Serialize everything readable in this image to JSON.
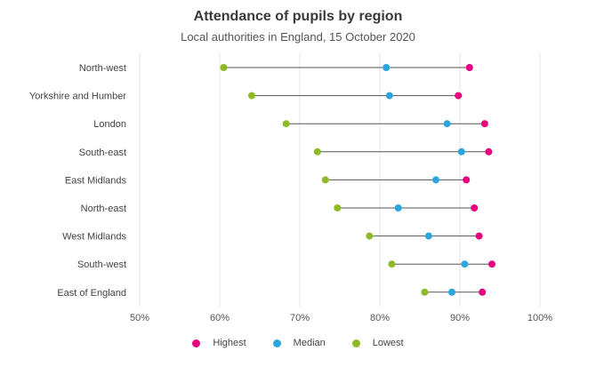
{
  "chart_data": {
    "type": "dot-range",
    "title": "Attendance of pupils by region",
    "subtitle": "Local authorities in England, 15 October 2020",
    "categories": [
      "North-west",
      "Yorkshire and Humber",
      "London",
      "South-east",
      "East Midlands",
      "North-east",
      "West Midlands",
      "South-west",
      "East of England"
    ],
    "series": [
      {
        "name": "Highest",
        "color": "#e6007e",
        "values": [
          91.2,
          89.8,
          93.1,
          93.6,
          90.8,
          91.8,
          92.4,
          94.0,
          92.8
        ]
      },
      {
        "name": "Median",
        "color": "#2aa6dc",
        "values": [
          80.8,
          81.2,
          88.4,
          90.2,
          87.0,
          82.3,
          86.1,
          90.6,
          89.0
        ]
      },
      {
        "name": "Lowest",
        "color": "#8dbb25",
        "values": [
          60.5,
          64.0,
          68.3,
          72.2,
          73.2,
          74.7,
          78.7,
          81.5,
          85.6
        ]
      }
    ],
    "xlim": [
      50,
      100
    ],
    "xticks": [
      "50%",
      "60%",
      "70%",
      "80%",
      "90%",
      "100%"
    ],
    "xtick_values": [
      50,
      60,
      70,
      80,
      90,
      100
    ],
    "grid": "vertical",
    "legend_position": "bottom"
  }
}
